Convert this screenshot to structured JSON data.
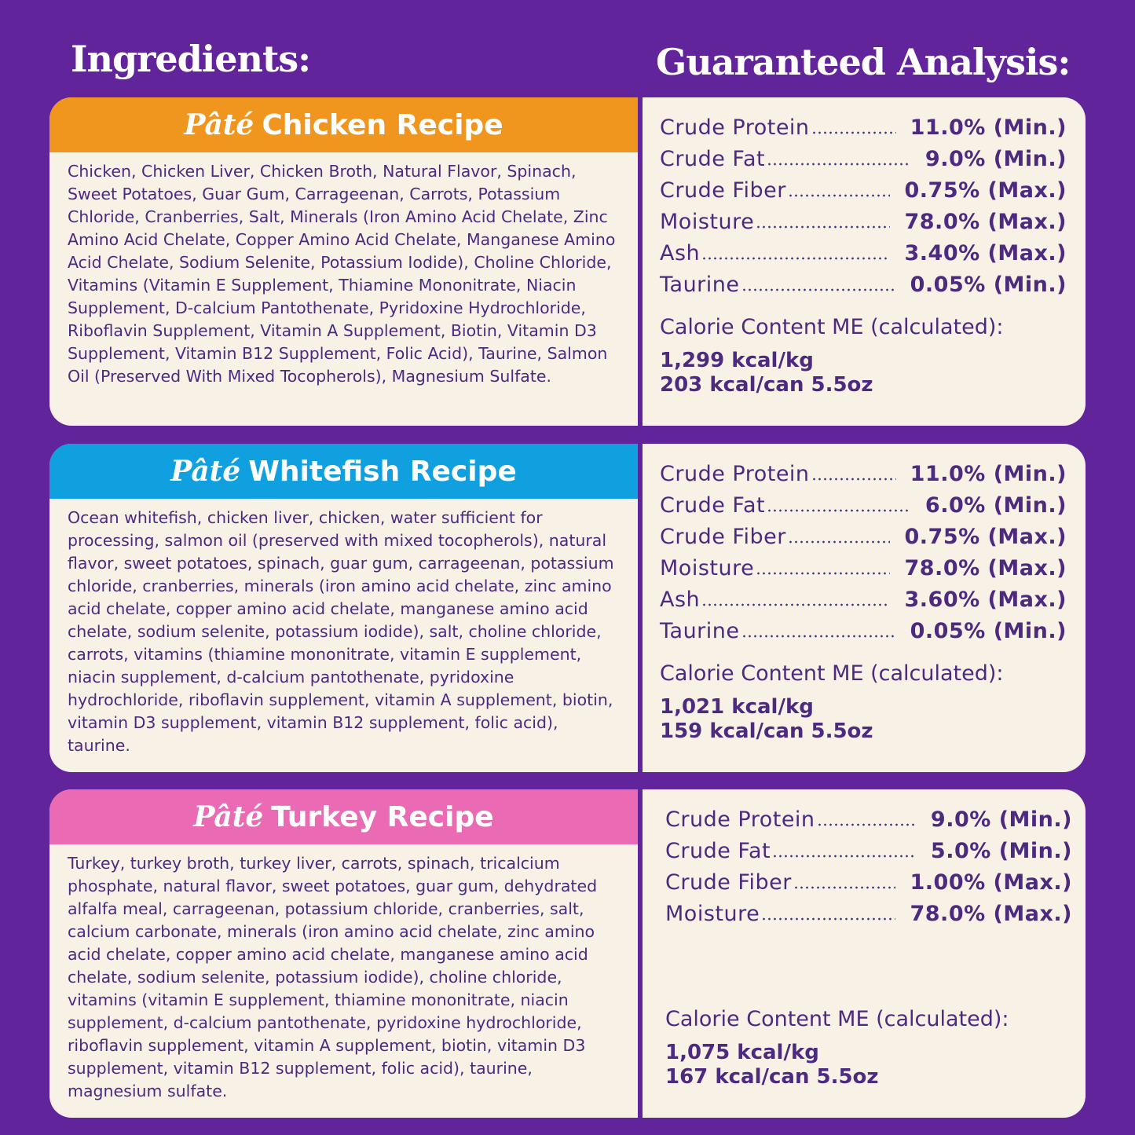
{
  "header": {
    "ingredients_title": "Ingredients:",
    "analysis_title": "Guaranteed Analysis:"
  },
  "recipes": [
    {
      "prefix": "Pâté",
      "name": "Chicken Recipe",
      "color": "#f0951d",
      "ingredients": "Chicken, Chicken Liver, Chicken Broth, Natural Flavor, Spinach, Sweet Potatoes, Guar Gum, Carrageenan, Carrots, Potassium Chloride, Cranberries, Salt, Minerals (Iron Amino Acid Chelate, Zinc Amino Acid Chelate, Copper Amino Acid Chelate, Manganese Amino Acid Chelate, Sodium Selenite, Potassium Iodide), Choline Chloride, Vitamins (Vitamin E Supplement, Thiamine Mononitrate, Niacin Supplement, D-calcium Pantothenate, Pyridoxine Hydrochloride, Riboflavin Supplement, Vitamin A Supplement, Biotin, Vitamin D3 Supplement, Vitamin B12 Supplement, Folic Acid), Taurine, Salmon Oil (Preserved With Mixed Tocopherols), Magnesium Sulfate.",
      "analysis": [
        [
          "Crude Protein",
          "11.0% (Min.)"
        ],
        [
          "Crude Fat",
          "9.0% (Min.)"
        ],
        [
          "Crude Fiber",
          "0.75% (Max.)"
        ],
        [
          "Moisture",
          "78.0% (Max.)"
        ],
        [
          "Ash",
          "3.40% (Max.)"
        ],
        [
          "Taurine",
          "0.05% (Min.)"
        ]
      ],
      "calorie_title": "Calorie Content ME (calculated):",
      "calories": [
        "1,299 kcal/kg",
        "203 kcal/can 5.5oz"
      ]
    },
    {
      "prefix": "Pâté",
      "name": "Whitefish Recipe",
      "color": "#109fdf",
      "ingredients": "Ocean whitefish, chicken liver, chicken, water sufficient for processing, salmon oil (preserved with mixed tocopherols), natural flavor, sweet potatoes, spinach, guar gum, carrageenan, potassium chloride, cranberries, minerals (iron amino acid chelate, zinc amino acid chelate, copper amino acid chelate, manganese amino acid chelate, sodium selenite, potassium iodide), salt, choline chloride, carrots, vitamins (thiamine mononitrate, vitamin E supplement, niacin supplement, d-calcium pantothenate, pyridoxine hydrochloride, riboflavin supplement, vitamin A supplement, biotin, vitamin D3 supplement, vitamin B12 supplement, folic acid), taurine.",
      "analysis": [
        [
          "Crude Protein",
          "11.0% (Min.)"
        ],
        [
          "Crude Fat",
          "6.0% (Min.)"
        ],
        [
          "Crude Fiber",
          "0.75% (Max.)"
        ],
        [
          "Moisture",
          "78.0% (Max.)"
        ],
        [
          "Ash",
          "3.60% (Max.)"
        ],
        [
          "Taurine",
          "0.05% (Min.)"
        ]
      ],
      "calorie_title": "Calorie Content ME (calculated):",
      "calories": [
        "1,021 kcal/kg",
        "159 kcal/can 5.5oz"
      ]
    },
    {
      "prefix": "Pâté",
      "name": "Turkey Recipe",
      "color": "#ea6ab3",
      "ingredients": "Turkey, turkey broth, turkey liver, carrots, spinach, tricalcium phosphate, natural flavor, sweet potatoes, guar gum, dehydrated alfalfa meal, carrageenan, potassium chloride, cranberries, salt, calcium carbonate, minerals (iron amino acid chelate, zinc amino acid chelate, copper amino acid chelate, manganese amino acid chelate, sodium selenite, potassium iodide), choline chloride, vitamins (vitamin E supplement, thiamine mononitrate, niacin supplement, d-calcium pantothenate, pyridoxine hydrochloride, riboflavin supplement, vitamin A supplement, biotin, vitamin D3 supplement, vitamin B12 supplement, folic acid), taurine, magnesium sulfate.",
      "analysis": [
        [
          "Crude Protein",
          "9.0% (Min.)"
        ],
        [
          "Crude Fat",
          "5.0% (Min.)"
        ],
        [
          "Crude Fiber",
          "1.00% (Max.)"
        ],
        [
          "Moisture",
          "78.0% (Max.)"
        ]
      ],
      "calorie_title": "Calorie Content ME (calculated):",
      "calories": [
        "1,075 kcal/kg",
        "167 kcal/can 5.5oz"
      ]
    }
  ]
}
